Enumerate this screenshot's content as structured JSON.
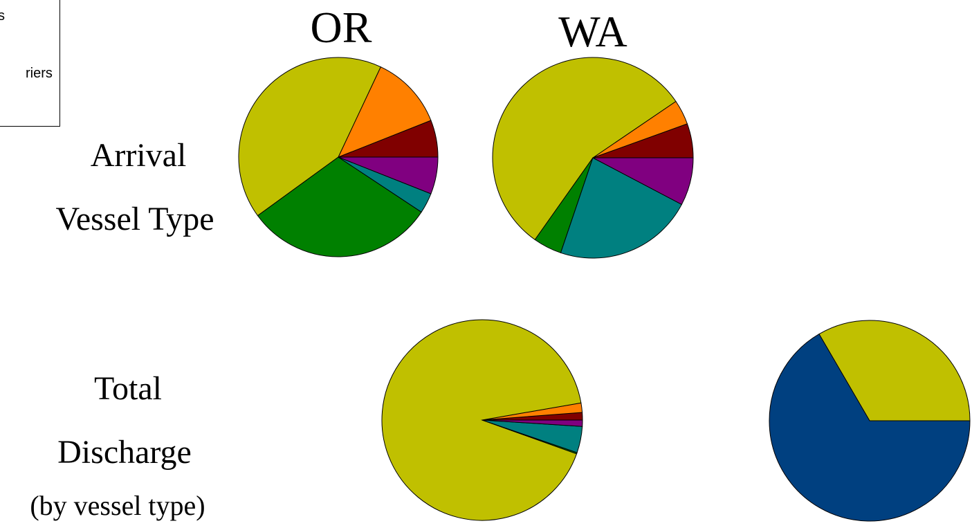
{
  "legend": {
    "items": [
      "s",
      "riers"
    ]
  },
  "headers": {
    "or": "OR",
    "wa": "WA"
  },
  "row_labels": {
    "arrival_line1": "Arrival",
    "arrival_line2": "Vessel Type",
    "discharge_line1": "Total",
    "discharge_line2": "Discharge",
    "discharge_line3": "(by vessel type)"
  },
  "colors": {
    "olive": "#c0c000",
    "orange": "#ff8000",
    "darkred": "#800000",
    "purple": "#800080",
    "teal": "#008080",
    "green": "#008000",
    "navy": "#004080"
  },
  "chart_data": [
    {
      "type": "pie",
      "title": "OR",
      "row": "Arrival Vessel Type",
      "start_angle_deg": 0,
      "slices": [
        {
          "color": "darkred",
          "value": 6.0
        },
        {
          "color": "orange",
          "value": 12.0
        },
        {
          "color": "olive",
          "value": 42.0
        },
        {
          "color": "green",
          "value": 30.7
        },
        {
          "color": "teal",
          "value": 3.3
        },
        {
          "color": "purple",
          "value": 6.0
        }
      ]
    },
    {
      "type": "pie",
      "title": "WA",
      "row": "Arrival Vessel Type",
      "start_angle_deg": 0,
      "slices": [
        {
          "color": "darkred",
          "value": 5.5
        },
        {
          "color": "orange",
          "value": 4.0
        },
        {
          "color": "olive",
          "value": 55.7
        },
        {
          "color": "green",
          "value": 4.6
        },
        {
          "color": "teal",
          "value": 22.5
        },
        {
          "color": "purple",
          "value": 7.7
        }
      ]
    },
    {
      "type": "pie",
      "title": "OR",
      "row": "Total Discharge (by vessel type)",
      "start_angle_deg": 0,
      "slices": [
        {
          "color": "darkred",
          "value": 1.2
        },
        {
          "color": "orange",
          "value": 1.5
        },
        {
          "color": "olive",
          "value": 90.7
        },
        {
          "color": "green",
          "value": 0.2
        },
        {
          "color": "teal",
          "value": 4.2
        },
        {
          "color": "purple",
          "value": 1.0
        }
      ]
    },
    {
      "type": "pie",
      "title": "WA",
      "row": "Total Discharge (by vessel type)",
      "start_angle_deg": 0,
      "slices": [
        {
          "color": "olive",
          "value": 33.4
        },
        {
          "color": "navy",
          "value": 66.6
        }
      ]
    }
  ]
}
